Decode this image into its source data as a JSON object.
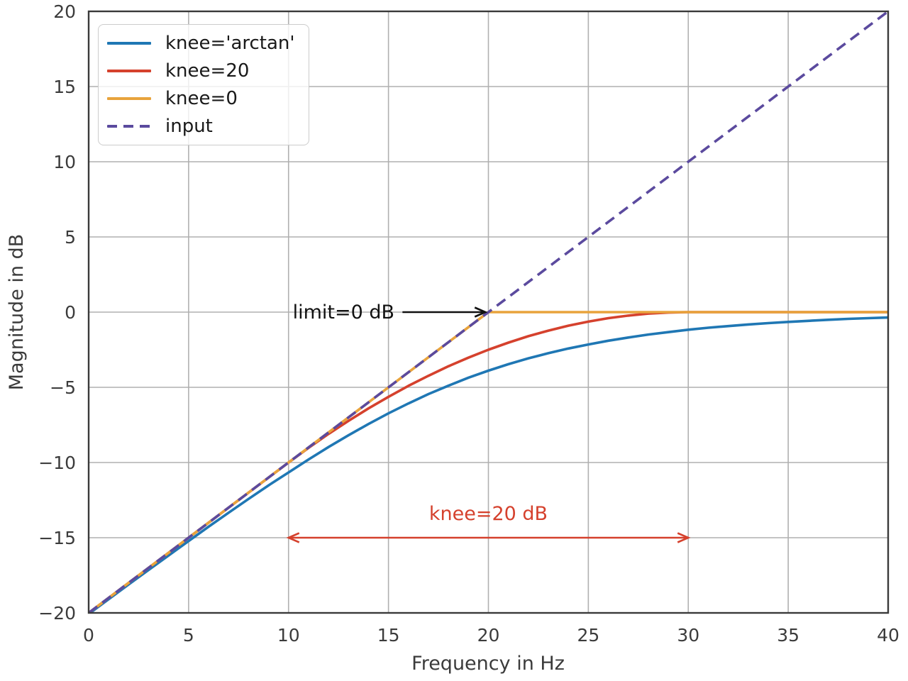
{
  "chart_data": {
    "type": "line",
    "title": "",
    "xlabel": "Frequency in Hz",
    "ylabel": "Magnitude in dB",
    "xlim": [
      0,
      40
    ],
    "ylim": [
      -20,
      20
    ],
    "xticks": [
      0,
      5,
      10,
      15,
      20,
      25,
      30,
      35,
      40
    ],
    "yticks": [
      -20,
      -15,
      -10,
      -5,
      0,
      5,
      10,
      15,
      20
    ],
    "grid": true,
    "grid_color": "#b0b0b0",
    "spine_color": "#3a3a3a",
    "tick_label_color": "#3b3b3b",
    "legend": {
      "position": "upper left"
    },
    "series": [
      {
        "name": "knee='arctan'",
        "color": "#1f77b4",
        "style": "solid",
        "points": [
          [
            0,
            -20.07
          ],
          [
            1,
            -19.09
          ],
          [
            2,
            -18.11
          ],
          [
            3,
            -17.14
          ],
          [
            4,
            -16.18
          ],
          [
            5,
            -15.22
          ],
          [
            6,
            -14.27
          ],
          [
            7,
            -13.34
          ],
          [
            8,
            -12.42
          ],
          [
            9,
            -11.52
          ],
          [
            10,
            -10.66
          ],
          [
            11,
            -9.8
          ],
          [
            12,
            -8.97
          ],
          [
            13,
            -8.19
          ],
          [
            14,
            -7.44
          ],
          [
            15,
            -6.73
          ],
          [
            16,
            -6.07
          ],
          [
            17,
            -5.45
          ],
          [
            18,
            -4.89
          ],
          [
            19,
            -4.36
          ],
          [
            20,
            -3.89
          ],
          [
            21,
            -3.46
          ],
          [
            22,
            -3.07
          ],
          [
            23,
            -2.73
          ],
          [
            24,
            -2.42
          ],
          [
            25,
            -2.15
          ],
          [
            26,
            -1.9
          ],
          [
            27,
            -1.69
          ],
          [
            28,
            -1.49
          ],
          [
            29,
            -1.33
          ],
          [
            30,
            -1.17
          ],
          [
            31,
            -1.04
          ],
          [
            32,
            -0.93
          ],
          [
            33,
            -0.82
          ],
          [
            34,
            -0.73
          ],
          [
            35,
            -0.65
          ],
          [
            36,
            -0.58
          ],
          [
            37,
            -0.51
          ],
          [
            38,
            -0.45
          ],
          [
            39,
            -0.4
          ],
          [
            40,
            -0.36
          ]
        ]
      },
      {
        "name": "knee=20",
        "color": "#d5412d",
        "style": "solid",
        "points": [
          [
            0,
            -20
          ],
          [
            5,
            -15
          ],
          [
            10,
            -10
          ],
          [
            11,
            -9.03
          ],
          [
            12,
            -8.1
          ],
          [
            13,
            -7.23
          ],
          [
            14,
            -6.4
          ],
          [
            15,
            -5.63
          ],
          [
            16,
            -4.9
          ],
          [
            17,
            -4.23
          ],
          [
            18,
            -3.6
          ],
          [
            19,
            -3.03
          ],
          [
            20,
            -2.5
          ],
          [
            21,
            -2.03
          ],
          [
            22,
            -1.6
          ],
          [
            23,
            -1.23
          ],
          [
            24,
            -0.9
          ],
          [
            25,
            -0.63
          ],
          [
            26,
            -0.4
          ],
          [
            27,
            -0.23
          ],
          [
            28,
            -0.1
          ],
          [
            29,
            -0.03
          ],
          [
            30,
            0
          ],
          [
            35,
            0
          ],
          [
            40,
            0
          ]
        ]
      },
      {
        "name": "knee=0",
        "color": "#e8a33c",
        "style": "solid",
        "points": [
          [
            0,
            -20
          ],
          [
            20,
            0
          ],
          [
            40,
            0
          ]
        ]
      },
      {
        "name": "input",
        "color": "#5b4a9e",
        "style": "dashed",
        "points": [
          [
            0,
            -20
          ],
          [
            40,
            20
          ]
        ]
      }
    ],
    "annotations": [
      {
        "text": "limit=0 dB",
        "color": "#111111",
        "text_xy": [
          15.3,
          0
        ],
        "align": "end",
        "arrow": {
          "from": [
            15.7,
            0
          ],
          "to": [
            19.85,
            0
          ],
          "heads": "end"
        }
      },
      {
        "text": "knee=20 dB",
        "color": "#d5412d",
        "text_xy": [
          20,
          -13.4
        ],
        "align": "middle",
        "arrow": {
          "from": [
            10,
            -15
          ],
          "to": [
            30,
            -15
          ],
          "heads": "both"
        }
      }
    ]
  }
}
